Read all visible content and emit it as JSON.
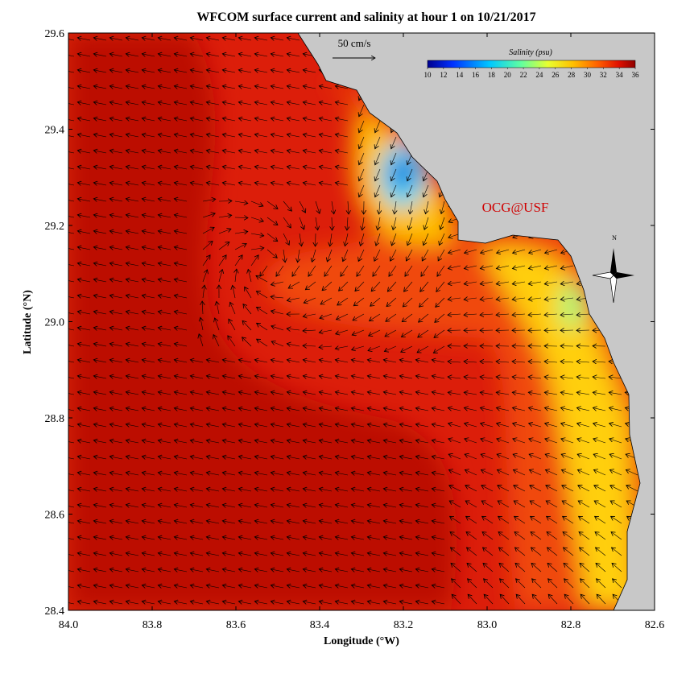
{
  "chart_data": {
    "type": "map",
    "title": "WFCOM surface current and salinity at hour 1 on 10/21/2017",
    "x_label": "Longitude (°W)",
    "y_label": "Latitude (°N)",
    "xlim": [
      84.0,
      82.6
    ],
    "ylim": [
      28.4,
      29.6
    ],
    "xticks": [
      {
        "value": 84.0,
        "label": "84.0"
      },
      83.8,
      83.6,
      83.4,
      83.2,
      {
        "value": 83.0,
        "label": "83.0"
      },
      82.8,
      82.6
    ],
    "yticks": [
      28.4,
      28.6,
      28.8,
      {
        "value": 29.0,
        "label": "29.0"
      },
      29.2,
      29.4,
      29.6
    ],
    "colorbar": {
      "title": "Salinity (psu)",
      "lim": [
        10,
        36
      ],
      "ticks": [
        10,
        12,
        14,
        16,
        18,
        20,
        22,
        24,
        26,
        28,
        30,
        32,
        34,
        36
      ]
    },
    "scale_label": "50 cm/s",
    "annotation": "OCG@USF",
    "compass_label": "N"
  }
}
